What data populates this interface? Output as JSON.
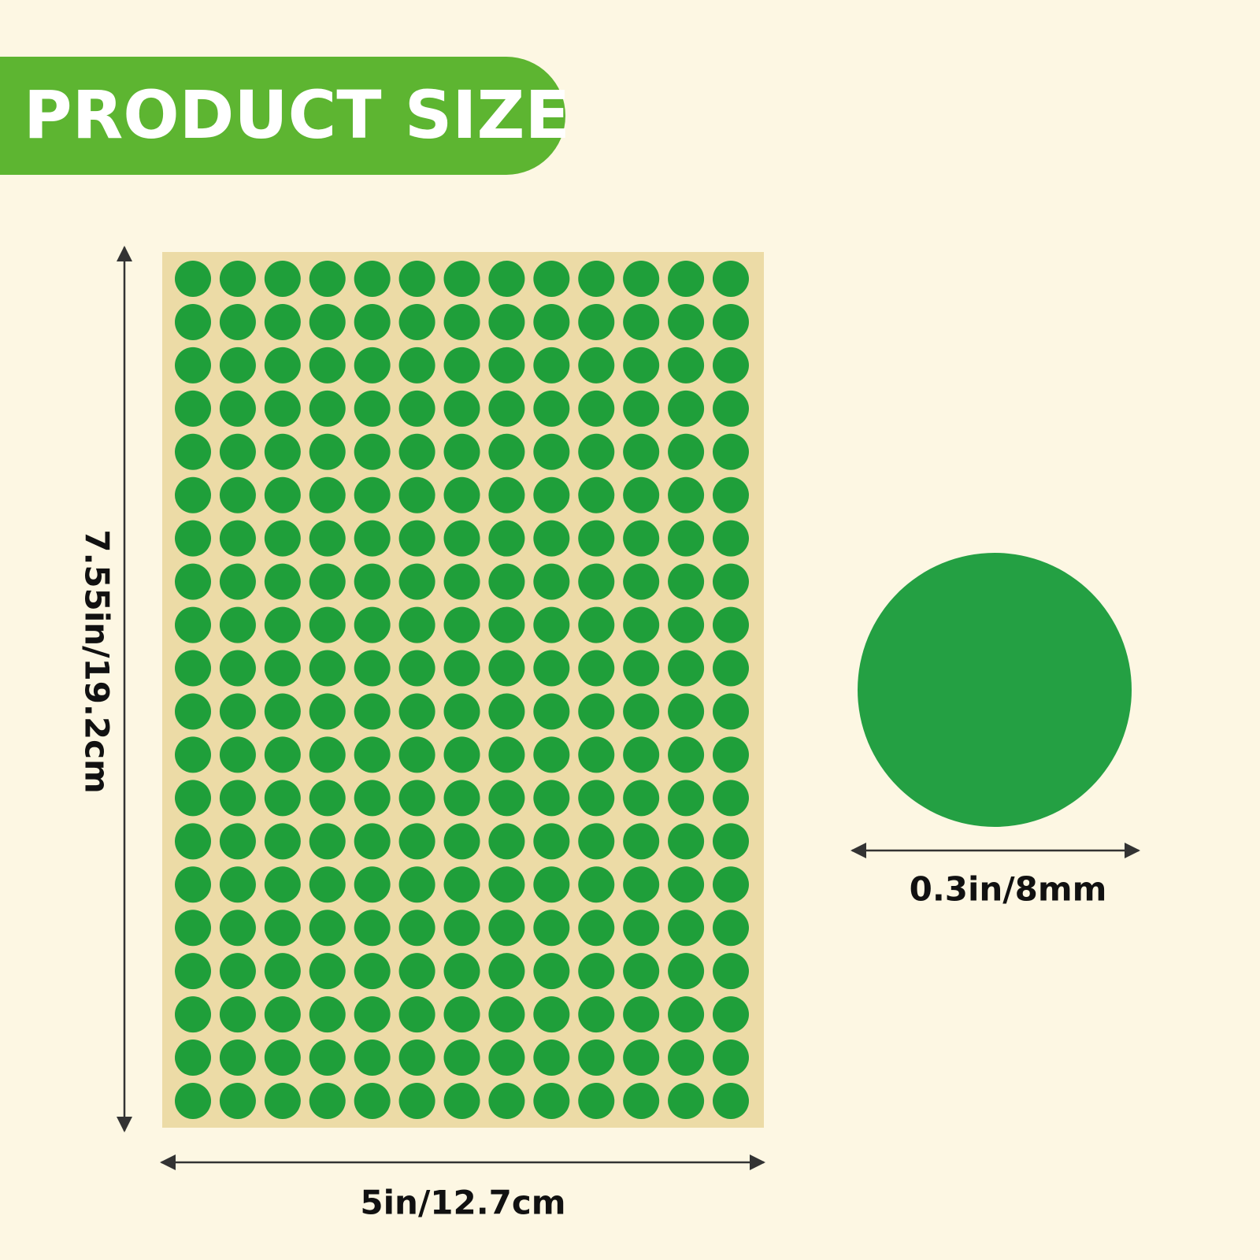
{
  "banner": {
    "title": "PRODUCT SIZE"
  },
  "sheet": {
    "height_label": "7.55in/19.2cm",
    "width_label": "5in/12.7cm"
  },
  "dot": {
    "size_label": "0.3in/8mm"
  }
}
